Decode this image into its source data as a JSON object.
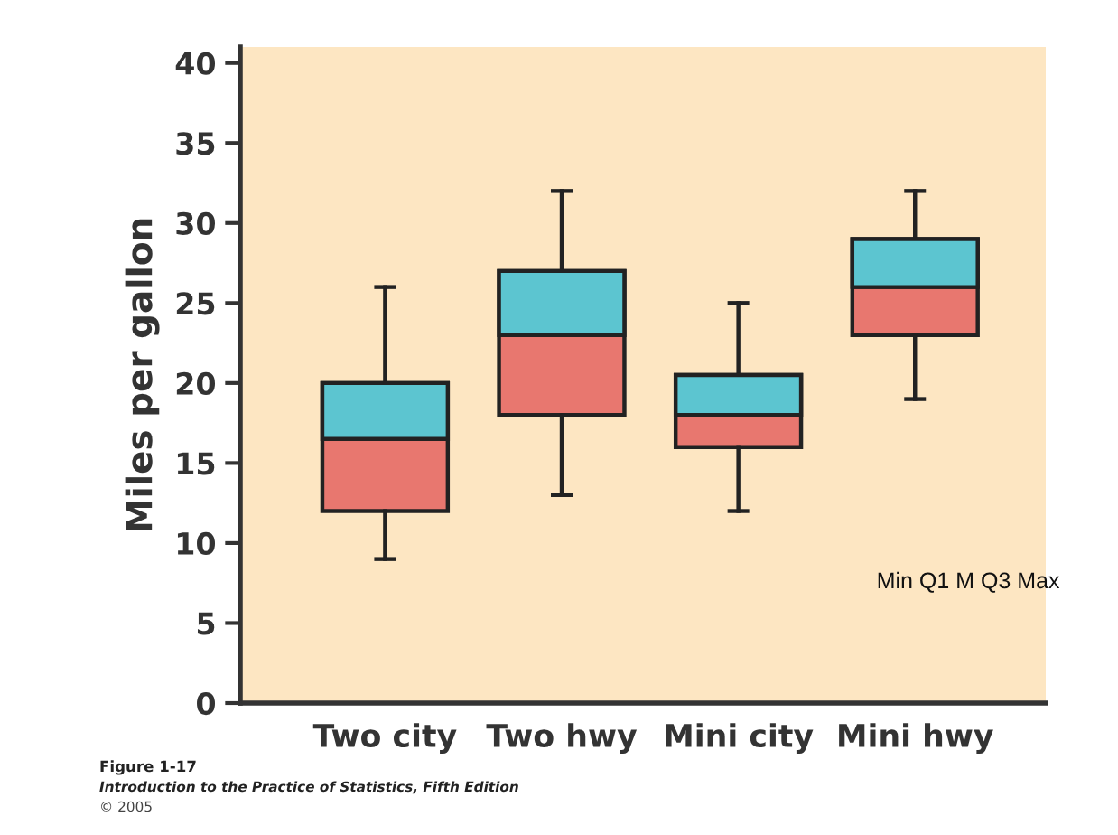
{
  "chart_data": {
    "type": "box",
    "ylabel": "Miles per gallon",
    "categories": [
      "Two city",
      "Two hwy",
      "Mini city",
      "Mini hwy"
    ],
    "series": [
      {
        "color": "#5cc5d0",
        "colors": [
          "#e8776f",
          "#e8776f",
          "#e8776f",
          "#e8776f"
        ],
        "boxes": [
          {
            "low": 9,
            "q1": 12,
            "median": 16.5,
            "q3": 20,
            "high": 26
          },
          {
            "low": 13,
            "q1": 18,
            "median": 23,
            "q3": 27,
            "high": 32
          },
          {
            "low": 12,
            "q1": 16,
            "median": 18,
            "q3": 20.5,
            "high": 25
          },
          {
            "low": 19,
            "q1": 23,
            "median": 26,
            "q3": 29,
            "high": 32
          }
        ]
      }
    ],
    "ylim": [
      0,
      41
    ],
    "yticks": [
      0,
      5,
      10,
      15,
      20,
      25,
      30,
      35,
      40
    ],
    "grid": false,
    "annotations": [
      "Min Q1 M Q3 Max",
      "Figure 1-17",
      "Introduction to the Practice of Statistics, Fifth Edition",
      "© 2005"
    ]
  }
}
